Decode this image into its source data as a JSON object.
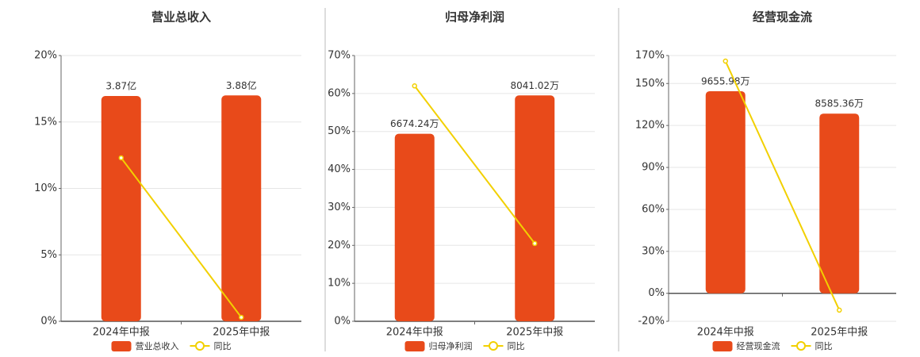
{
  "chart_data": [
    {
      "type": "combo",
      "title": "营业总收入",
      "categories": [
        "2024年中报",
        "2025年中报"
      ],
      "series": [
        {
          "name": "营业总收入",
          "type": "bar",
          "color": "#e84a1a",
          "values": [
            3.87,
            3.88
          ],
          "value_labels": [
            "3.87亿",
            "3.88亿"
          ]
        },
        {
          "name": "同比",
          "type": "line",
          "color": "#f2d000",
          "values": [
            12.3,
            0.3
          ]
        }
      ],
      "ylim": [
        0,
        20
      ],
      "yticks": [
        {
          "value": 0,
          "label": "0%"
        },
        {
          "value": 5,
          "label": "5%"
        },
        {
          "value": 10,
          "label": "10%"
        },
        {
          "value": 15,
          "label": "15%"
        },
        {
          "value": 20,
          "label": "20%"
        }
      ],
      "grid": true
    },
    {
      "type": "combo",
      "title": "归母净利润",
      "categories": [
        "2024年中报",
        "2025年中报"
      ],
      "series": [
        {
          "name": "归母净利润",
          "type": "bar",
          "color": "#e84a1a",
          "values": [
            6674.24,
            8041.02
          ],
          "value_labels": [
            "6674.24万",
            "8041.02万"
          ]
        },
        {
          "name": "同比",
          "type": "line",
          "color": "#f2d000",
          "values": [
            62,
            20.5
          ]
        }
      ],
      "ylim": [
        0,
        70
      ],
      "yticks": [
        {
          "value": 0,
          "label": "0%"
        },
        {
          "value": 10,
          "label": "10%"
        },
        {
          "value": 20,
          "label": "20%"
        },
        {
          "value": 30,
          "label": "30%"
        },
        {
          "value": 40,
          "label": "40%"
        },
        {
          "value": 50,
          "label": "50%"
        },
        {
          "value": 60,
          "label": "60%"
        },
        {
          "value": 70,
          "label": "70%"
        }
      ],
      "grid": true
    },
    {
      "type": "combo",
      "title": "经营现金流",
      "categories": [
        "2024年中报",
        "2025年中报"
      ],
      "series": [
        {
          "name": "经营现金流",
          "type": "bar",
          "color": "#e84a1a",
          "values": [
            9655.98,
            8585.36
          ],
          "value_labels": [
            "9655.98万",
            "8585.36万"
          ]
        },
        {
          "name": "同比",
          "type": "line",
          "color": "#f2d000",
          "values": [
            166,
            -12
          ]
        }
      ],
      "ylim": [
        -20,
        170
      ],
      "yticks": [
        {
          "value": -20,
          "label": "-20%"
        },
        {
          "value": 0,
          "label": "0%"
        },
        {
          "value": 30,
          "label": "30%"
        },
        {
          "value": 60,
          "label": "60%"
        },
        {
          "value": 90,
          "label": "90%"
        },
        {
          "value": 120,
          "label": "120%"
        },
        {
          "value": 150,
          "label": "150%"
        },
        {
          "value": 170,
          "label": "170%"
        }
      ],
      "grid": true
    }
  ]
}
